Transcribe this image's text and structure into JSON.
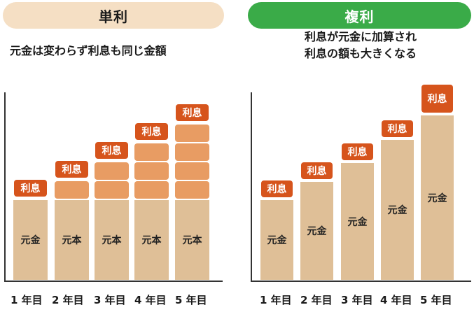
{
  "simple": {
    "title": "単利",
    "description": "元金は変わらず利息も同じ金額",
    "principal_label": "元金",
    "principal_label_later": "元本",
    "interest_label": "利息",
    "years": [
      "1 年目",
      "2 年目",
      "3 年目",
      "4 年目",
      "5 年目"
    ],
    "interest_blocks_per_year": [
      1,
      2,
      3,
      4,
      5
    ],
    "colors": {
      "title_bg": "#f5dfc4",
      "principal": "#dfbf97",
      "interest_block": "#e89c63",
      "interest_tag": "#d6541c"
    }
  },
  "compound": {
    "title": "複利",
    "description_line1": "利息が元金に加算され",
    "description_line2": "利息の額も大きくなる",
    "principal_label": "元金",
    "interest_label": "利息",
    "years": [
      "1 年目",
      "2 年目",
      "3 年目",
      "4 年目",
      "5 年目"
    ],
    "colors": {
      "title_bg": "#3aab48",
      "title_text": "#ffffff"
    }
  }
}
